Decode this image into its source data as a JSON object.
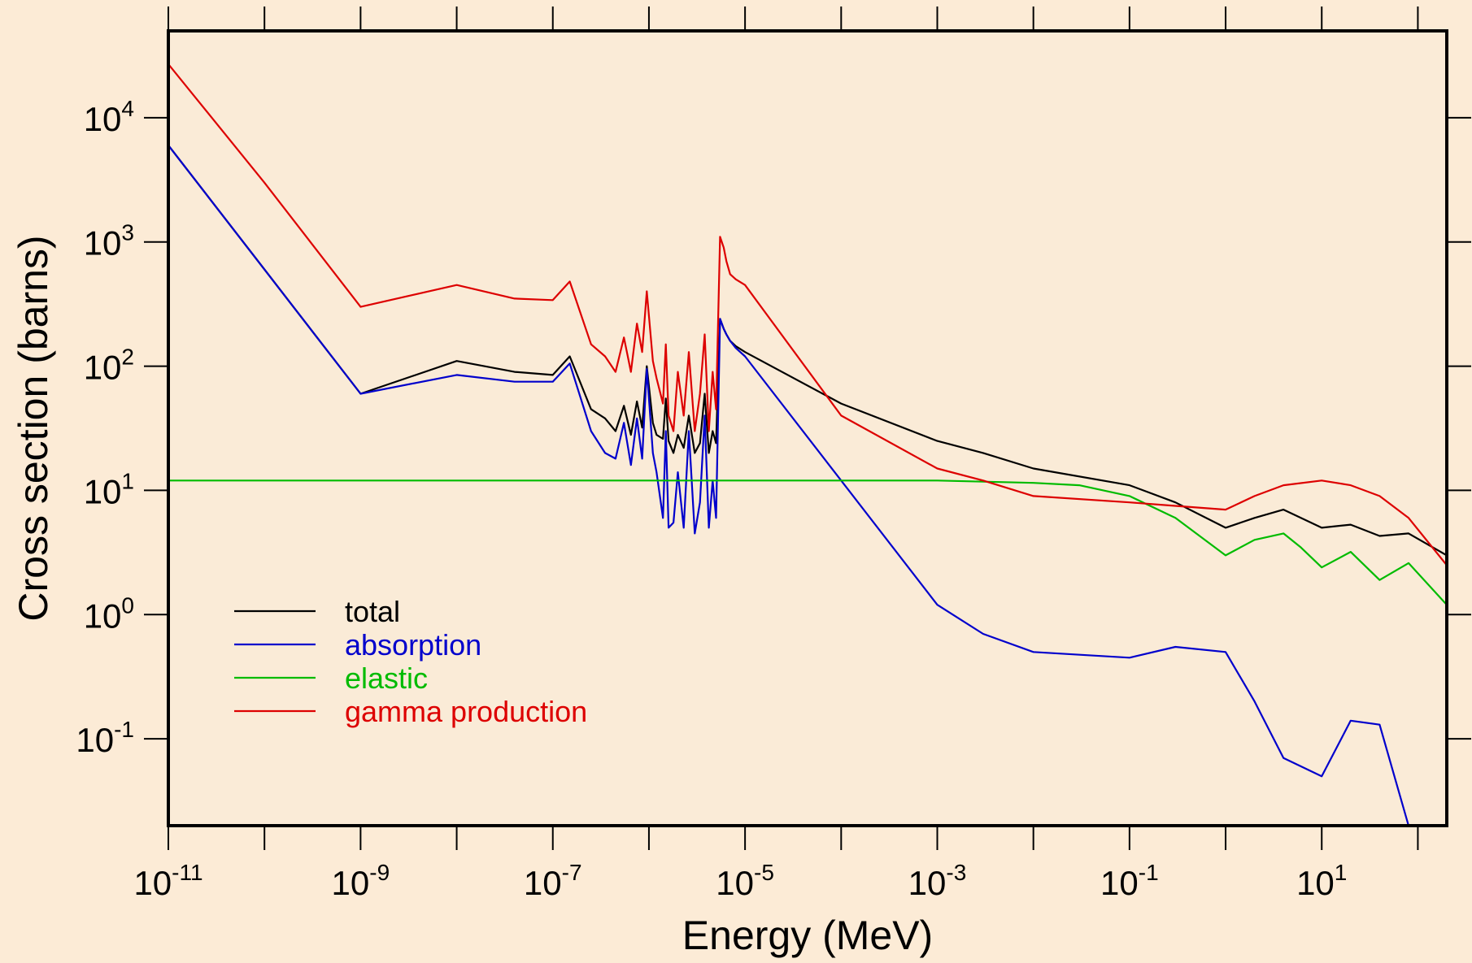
{
  "chart_data": {
    "type": "line",
    "title": "",
    "xlabel": "Energy (MeV)",
    "ylabel": "Cross section (barns)",
    "x_scale": "log",
    "y_scale": "log",
    "xlim": [
      1e-11,
      200
    ],
    "ylim": [
      0.02,
      50000
    ],
    "x_tick_labels": [
      {
        "base": "10",
        "exp": "-11",
        "value": 1e-11
      },
      {
        "base": "10",
        "exp": "-9",
        "value": 1e-09
      },
      {
        "base": "10",
        "exp": "-7",
        "value": 1e-07
      },
      {
        "base": "10",
        "exp": "-5",
        "value": 1e-05
      },
      {
        "base": "10",
        "exp": "-3",
        "value": 0.001
      },
      {
        "base": "10",
        "exp": "-1",
        "value": 0.1
      },
      {
        "base": "10",
        "exp": "1",
        "value": 10
      }
    ],
    "y_tick_labels": [
      {
        "base": "10",
        "exp": "4",
        "value": 10000
      },
      {
        "base": "10",
        "exp": "3",
        "value": 1000
      },
      {
        "base": "10",
        "exp": "2",
        "value": 100
      },
      {
        "base": "10",
        "exp": "1",
        "value": 10
      },
      {
        "base": "10",
        "exp": "0",
        "value": 1
      },
      {
        "base": "10",
        "exp": "-1",
        "value": 0.1
      }
    ],
    "grid": false,
    "legend_position": "bottom-left",
    "colors": {
      "background": "#FCEBD6",
      "plot_area": "#FAEBD7",
      "axis": "#000000"
    },
    "series": [
      {
        "name": "total",
        "color": "#000000",
        "x": [
          1e-11,
          1e-10,
          1e-09,
          1e-08,
          4e-08,
          1e-07,
          1.5e-07,
          2.5e-07,
          3.5e-07,
          4.5e-07,
          5.5e-07,
          6.5e-07,
          7.5e-07,
          8.5e-07,
          9.5e-07,
          1.1e-06,
          1.2e-06,
          1.4e-06,
          1.5e-06,
          1.6e-06,
          1.8e-06,
          2e-06,
          2.3e-06,
          2.6e-06,
          3e-06,
          3.4e-06,
          3.8e-06,
          4.2e-06,
          4.6e-06,
          5e-06,
          5.5e-06,
          6e-06,
          6.4e-06,
          7e-06,
          8e-06,
          1e-05,
          0.0001,
          0.001,
          0.003,
          0.01,
          0.1,
          0.3,
          1,
          2,
          4,
          10,
          20,
          40,
          80,
          200
        ],
        "y": [
          6000,
          600,
          60,
          110,
          90,
          85,
          120,
          45,
          38,
          30,
          48,
          28,
          52,
          32,
          100,
          35,
          28,
          26,
          55,
          25,
          20,
          28,
          22,
          40,
          20,
          24,
          60,
          20,
          30,
          24,
          240,
          200,
          180,
          160,
          145,
          130,
          50,
          25,
          20,
          15,
          11,
          8,
          5,
          6,
          7,
          5,
          5.3,
          4.3,
          4.5,
          3
        ]
      },
      {
        "name": "absorption",
        "color": "#0000CC",
        "x": [
          1e-11,
          1e-10,
          1e-09,
          1e-08,
          4e-08,
          1e-07,
          1.5e-07,
          2.5e-07,
          3.5e-07,
          4.5e-07,
          5.5e-07,
          6.5e-07,
          7.5e-07,
          8.5e-07,
          9.5e-07,
          1.1e-06,
          1.2e-06,
          1.4e-06,
          1.5e-06,
          1.6e-06,
          1.8e-06,
          2e-06,
          2.3e-06,
          2.6e-06,
          3e-06,
          3.4e-06,
          3.8e-06,
          4.2e-06,
          4.6e-06,
          5e-06,
          5.5e-06,
          6e-06,
          6.4e-06,
          7e-06,
          8e-06,
          1e-05,
          0.0001,
          0.001,
          0.003,
          0.01,
          0.1,
          0.3,
          1,
          2,
          4,
          10,
          20,
          40,
          80,
          200
        ],
        "y": [
          6000,
          600,
          60,
          85,
          75,
          75,
          105,
          30,
          20,
          18,
          35,
          16,
          38,
          18,
          95,
          20,
          14,
          6,
          30,
          5,
          5.5,
          14,
          5,
          30,
          4.5,
          8,
          40,
          5,
          12,
          6,
          240,
          200,
          180,
          160,
          140,
          120,
          12,
          1.2,
          0.7,
          0.5,
          0.45,
          0.55,
          0.5,
          0.2,
          0.07,
          0.05,
          0.14,
          0.13,
          0.02,
          0.02
        ]
      },
      {
        "name": "elastic",
        "color": "#00BB00",
        "x": [
          1e-11,
          1e-09,
          1e-07,
          1e-06,
          1e-05,
          0.0001,
          0.001,
          0.01,
          0.03,
          0.1,
          0.3,
          1,
          2,
          4,
          6,
          10,
          20,
          40,
          80,
          200
        ],
        "y": [
          12,
          12,
          12,
          12,
          12,
          12,
          12,
          11.5,
          11,
          9,
          6,
          3,
          4,
          4.5,
          3.5,
          2.4,
          3.2,
          1.9,
          2.6,
          1.2
        ]
      },
      {
        "name": "gamma production",
        "color": "#DD0000",
        "x": [
          1e-11,
          1e-10,
          1e-09,
          1e-08,
          4e-08,
          1e-07,
          1.5e-07,
          2.5e-07,
          3.5e-07,
          4.5e-07,
          5.5e-07,
          6.5e-07,
          7.5e-07,
          8.5e-07,
          9.5e-07,
          1.1e-06,
          1.2e-06,
          1.4e-06,
          1.5e-06,
          1.6e-06,
          1.8e-06,
          2e-06,
          2.3e-06,
          2.6e-06,
          3e-06,
          3.4e-06,
          3.8e-06,
          4.2e-06,
          4.6e-06,
          5e-06,
          5.5e-06,
          6e-06,
          6.4e-06,
          7e-06,
          8e-06,
          1e-05,
          0.0001,
          0.001,
          0.003,
          0.01,
          0.1,
          0.3,
          1,
          2,
          4,
          10,
          20,
          40,
          80,
          200
        ],
        "y": [
          27000,
          3000,
          300,
          450,
          350,
          340,
          480,
          150,
          120,
          90,
          170,
          90,
          220,
          130,
          400,
          110,
          80,
          50,
          150,
          40,
          30,
          90,
          40,
          130,
          30,
          60,
          180,
          30,
          90,
          45,
          1100,
          900,
          700,
          550,
          500,
          450,
          40,
          15,
          12,
          9,
          8,
          7.5,
          7,
          9,
          11,
          12,
          11,
          9,
          6,
          2.5
        ]
      }
    ]
  }
}
